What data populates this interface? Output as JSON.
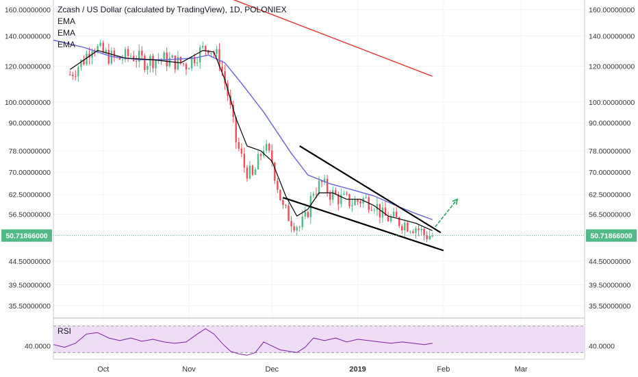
{
  "chart_data": {
    "type": "candlestick",
    "title": "Zcash / US Dollar (calculated by TradingView), 1D, POLONIEX",
    "indicators": [
      "EMA",
      "EMA",
      "EMA"
    ],
    "y_scale": "log",
    "ylim": [
      31,
      170
    ],
    "y_ticks": [
      "160.00000000",
      "140.00000000",
      "120.00000000",
      "100.00000000",
      "90.00000000",
      "78.00000000",
      "70.00000000",
      "62.50000000",
      "56.50000000",
      "44.50000000",
      "39.50000000",
      "35.50000000"
    ],
    "y_tick_values": [
      160,
      140,
      120,
      100,
      90,
      78,
      70,
      62.5,
      56.5,
      44.5,
      39.5,
      35.5
    ],
    "last_price": "50.71866000",
    "last_price_value": 50.71866,
    "x_labels": [
      "Oct",
      "Nov",
      "Dec",
      "2019",
      "Feb",
      "Mar"
    ],
    "x_label_days": [
      12,
      43,
      73,
      104,
      135,
      163
    ],
    "x_range_days": [
      -6,
      186
    ],
    "price_path": [
      {
        "day": 0,
        "price": 115
      },
      {
        "day": 5,
        "price": 124
      },
      {
        "day": 8,
        "price": 134
      },
      {
        "day": 12,
        "price": 128
      },
      {
        "day": 17,
        "price": 124
      },
      {
        "day": 22,
        "price": 127
      },
      {
        "day": 27,
        "price": 123
      },
      {
        "day": 32,
        "price": 125
      },
      {
        "day": 37,
        "price": 123
      },
      {
        "day": 42,
        "price": 121
      },
      {
        "day": 46,
        "price": 128
      },
      {
        "day": 50,
        "price": 133
      },
      {
        "day": 54,
        "price": 124
      },
      {
        "day": 57,
        "price": 104
      },
      {
        "day": 60,
        "price": 82
      },
      {
        "day": 63,
        "price": 72
      },
      {
        "day": 66,
        "price": 68
      },
      {
        "day": 70,
        "price": 80
      },
      {
        "day": 73,
        "price": 74
      },
      {
        "day": 77,
        "price": 58
      },
      {
        "day": 80,
        "price": 55
      },
      {
        "day": 83,
        "price": 53
      },
      {
        "day": 85,
        "price": 55
      },
      {
        "day": 88,
        "price": 64
      },
      {
        "day": 91,
        "price": 66
      },
      {
        "day": 94,
        "price": 63
      },
      {
        "day": 98,
        "price": 61
      },
      {
        "day": 102,
        "price": 60
      },
      {
        "day": 106,
        "price": 61
      },
      {
        "day": 110,
        "price": 60
      },
      {
        "day": 113,
        "price": 56
      },
      {
        "day": 117,
        "price": 55
      },
      {
        "day": 121,
        "price": 54
      },
      {
        "day": 125,
        "price": 53
      },
      {
        "day": 128,
        "price": 51
      },
      {
        "day": 131,
        "price": 50.7
      }
    ],
    "ema_short": [
      {
        "day": 0,
        "price": 118
      },
      {
        "day": 10,
        "price": 130
      },
      {
        "day": 20,
        "price": 125
      },
      {
        "day": 30,
        "price": 124
      },
      {
        "day": 40,
        "price": 122
      },
      {
        "day": 48,
        "price": 130
      },
      {
        "day": 52,
        "price": 129
      },
      {
        "day": 56,
        "price": 112
      },
      {
        "day": 60,
        "price": 92
      },
      {
        "day": 64,
        "price": 80
      },
      {
        "day": 69,
        "price": 78
      },
      {
        "day": 73,
        "price": 74
      },
      {
        "day": 78,
        "price": 62
      },
      {
        "day": 82,
        "price": 56
      },
      {
        "day": 86,
        "price": 58
      },
      {
        "day": 90,
        "price": 63
      },
      {
        "day": 95,
        "price": 63
      },
      {
        "day": 100,
        "price": 61
      },
      {
        "day": 105,
        "price": 61
      },
      {
        "day": 110,
        "price": 59
      },
      {
        "day": 115,
        "price": 56
      },
      {
        "day": 120,
        "price": 55
      },
      {
        "day": 125,
        "price": 54
      },
      {
        "day": 131,
        "price": 52
      }
    ],
    "ema_long": [
      {
        "day": -6,
        "price": 137
      },
      {
        "day": 5,
        "price": 132
      },
      {
        "day": 15,
        "price": 126
      },
      {
        "day": 25,
        "price": 124
      },
      {
        "day": 35,
        "price": 124
      },
      {
        "day": 45,
        "price": 125
      },
      {
        "day": 50,
        "price": 127
      },
      {
        "day": 56,
        "price": 122
      },
      {
        "day": 62,
        "price": 110
      },
      {
        "day": 70,
        "price": 95
      },
      {
        "day": 80,
        "price": 77
      },
      {
        "day": 86,
        "price": 69
      },
      {
        "day": 94,
        "price": 66
      },
      {
        "day": 102,
        "price": 64
      },
      {
        "day": 110,
        "price": 62
      },
      {
        "day": 118,
        "price": 59
      },
      {
        "day": 124,
        "price": 57
      },
      {
        "day": 131,
        "price": 55
      }
    ],
    "ema_200": [
      {
        "day": 55,
        "price": 172
      },
      {
        "day": 131,
        "price": 114
      }
    ],
    "trendline_upper": [
      {
        "day": 83,
        "price": 80
      },
      {
        "day": 134,
        "price": 51.5
      }
    ],
    "trendline_lower": [
      {
        "day": 77,
        "price": 61.5
      },
      {
        "day": 135,
        "price": 47
      }
    ],
    "arrow": {
      "from": {
        "day": 132,
        "price": 53
      },
      "to": {
        "day": 140,
        "price": 61
      }
    },
    "rsi": {
      "label": "RSI",
      "level_tick": "40.0000",
      "level_value": 40,
      "upper_band": 70,
      "lower_band": 30,
      "ylim": [
        20,
        80
      ],
      "values": [
        {
          "day": -6,
          "price": 42
        },
        {
          "day": -2,
          "price": 38
        },
        {
          "day": 2,
          "price": 44
        },
        {
          "day": 6,
          "price": 58
        },
        {
          "day": 10,
          "price": 60
        },
        {
          "day": 14,
          "price": 52
        },
        {
          "day": 18,
          "price": 48
        },
        {
          "day": 22,
          "price": 52
        },
        {
          "day": 26,
          "price": 47
        },
        {
          "day": 30,
          "price": 50
        },
        {
          "day": 34,
          "price": 46
        },
        {
          "day": 38,
          "price": 44
        },
        {
          "day": 42,
          "price": 46
        },
        {
          "day": 46,
          "price": 58
        },
        {
          "day": 49,
          "price": 66
        },
        {
          "day": 52,
          "price": 58
        },
        {
          "day": 55,
          "price": 44
        },
        {
          "day": 58,
          "price": 32
        },
        {
          "day": 61,
          "price": 28
        },
        {
          "day": 64,
          "price": 26
        },
        {
          "day": 67,
          "price": 30
        },
        {
          "day": 70,
          "price": 46
        },
        {
          "day": 73,
          "price": 40
        },
        {
          "day": 76,
          "price": 34
        },
        {
          "day": 79,
          "price": 32
        },
        {
          "day": 82,
          "price": 30
        },
        {
          "day": 85,
          "price": 38
        },
        {
          "day": 88,
          "price": 52
        },
        {
          "day": 92,
          "price": 48
        },
        {
          "day": 96,
          "price": 52
        },
        {
          "day": 100,
          "price": 46
        },
        {
          "day": 104,
          "price": 50
        },
        {
          "day": 108,
          "price": 48
        },
        {
          "day": 112,
          "price": 46
        },
        {
          "day": 116,
          "price": 44
        },
        {
          "day": 120,
          "price": 46
        },
        {
          "day": 124,
          "price": 44
        },
        {
          "day": 128,
          "price": 42
        },
        {
          "day": 131,
          "price": 44
        }
      ]
    },
    "colors": {
      "up": "#53b987",
      "down": "#eb4d5c",
      "ema_short": "#000000",
      "ema_long": "#6a6ad8",
      "ema_200": "#e53935",
      "rsi_line": "#7b1fa2",
      "rsi_fill": "#efdcf7",
      "price_label_bg": "#53b987",
      "arrow": "#26a65b"
    }
  }
}
